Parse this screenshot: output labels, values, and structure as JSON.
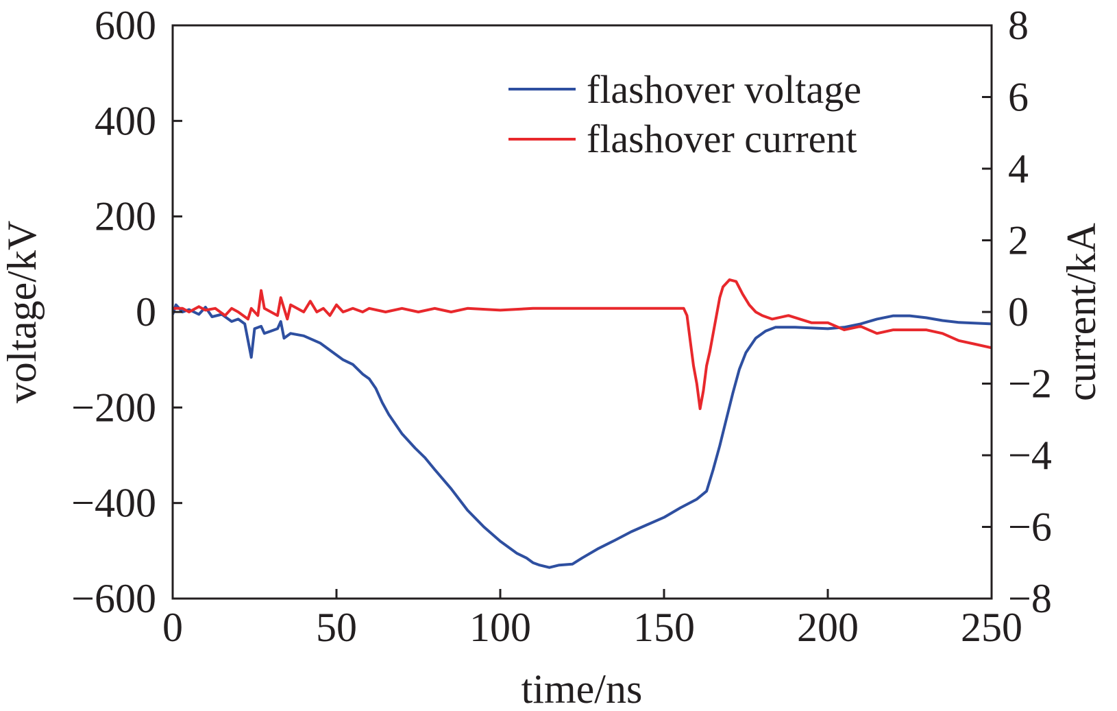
{
  "chart_data": {
    "type": "line",
    "xlabel": "time/ns",
    "ylabel": "voltage/kV",
    "y2label": "current/kA",
    "xlim": [
      0,
      250
    ],
    "ylim": [
      -600,
      600
    ],
    "y2lim": [
      -8,
      8
    ],
    "xticks": [
      0,
      50,
      100,
      150,
      200,
      250
    ],
    "yticks": [
      -600,
      -400,
      -200,
      0,
      200,
      400,
      600
    ],
    "y2ticks": [
      -8,
      -6,
      -4,
      -2,
      0,
      2,
      4,
      6,
      8
    ],
    "grid": false,
    "legend_position": "top-right",
    "series": [
      {
        "name": "flashover voltage",
        "axis": "left",
        "color": "#2e4fa0",
        "points": [
          [
            0,
            -5
          ],
          [
            1,
            15
          ],
          [
            3,
            0
          ],
          [
            5,
            5
          ],
          [
            8,
            -5
          ],
          [
            10,
            10
          ],
          [
            12,
            -10
          ],
          [
            15,
            -5
          ],
          [
            18,
            -20
          ],
          [
            20,
            -15
          ],
          [
            22,
            -25
          ],
          [
            24,
            -95
          ],
          [
            25,
            -35
          ],
          [
            27,
            -30
          ],
          [
            28,
            -45
          ],
          [
            30,
            -40
          ],
          [
            32,
            -35
          ],
          [
            33,
            -20
          ],
          [
            34,
            -55
          ],
          [
            36,
            -45
          ],
          [
            40,
            -50
          ],
          [
            45,
            -65
          ],
          [
            48,
            -80
          ],
          [
            52,
            -100
          ],
          [
            55,
            -110
          ],
          [
            58,
            -130
          ],
          [
            60,
            -140
          ],
          [
            62,
            -160
          ],
          [
            64,
            -190
          ],
          [
            66,
            -215
          ],
          [
            70,
            -255
          ],
          [
            74,
            -285
          ],
          [
            77,
            -305
          ],
          [
            80,
            -330
          ],
          [
            85,
            -370
          ],
          [
            90,
            -415
          ],
          [
            95,
            -450
          ],
          [
            100,
            -480
          ],
          [
            105,
            -505
          ],
          [
            108,
            -515
          ],
          [
            110,
            -525
          ],
          [
            112,
            -530
          ],
          [
            115,
            -535
          ],
          [
            118,
            -530
          ],
          [
            122,
            -528
          ],
          [
            125,
            -515
          ],
          [
            130,
            -495
          ],
          [
            135,
            -478
          ],
          [
            140,
            -460
          ],
          [
            145,
            -445
          ],
          [
            150,
            -430
          ],
          [
            155,
            -410
          ],
          [
            160,
            -392
          ],
          [
            163,
            -375
          ],
          [
            165,
            -330
          ],
          [
            167,
            -280
          ],
          [
            169,
            -225
          ],
          [
            171,
            -170
          ],
          [
            173,
            -120
          ],
          [
            175,
            -85
          ],
          [
            178,
            -55
          ],
          [
            181,
            -40
          ],
          [
            184,
            -32
          ],
          [
            190,
            -32
          ],
          [
            200,
            -35
          ],
          [
            205,
            -32
          ],
          [
            210,
            -25
          ],
          [
            215,
            -15
          ],
          [
            220,
            -8
          ],
          [
            225,
            -8
          ],
          [
            230,
            -12
          ],
          [
            235,
            -18
          ],
          [
            240,
            -22
          ],
          [
            250,
            -25
          ]
        ]
      },
      {
        "name": "flashover current",
        "axis": "right",
        "color": "#e8282c",
        "points": [
          [
            0,
            0.1
          ],
          [
            3,
            0.1
          ],
          [
            5,
            0
          ],
          [
            8,
            0.15
          ],
          [
            10,
            0.05
          ],
          [
            13,
            0.1
          ],
          [
            16,
            -0.1
          ],
          [
            18,
            0.1
          ],
          [
            20,
            0
          ],
          [
            23,
            -0.2
          ],
          [
            24,
            0.1
          ],
          [
            26,
            -0.1
          ],
          [
            27,
            0.6
          ],
          [
            28,
            0.1
          ],
          [
            30,
            0
          ],
          [
            32,
            -0.1
          ],
          [
            33,
            0.4
          ],
          [
            34,
            0.1
          ],
          [
            35,
            -0.2
          ],
          [
            36,
            0.2
          ],
          [
            38,
            0.1
          ],
          [
            40,
            0
          ],
          [
            42,
            0.3
          ],
          [
            44,
            0
          ],
          [
            46,
            0.1
          ],
          [
            48,
            -0.1
          ],
          [
            50,
            0.2
          ],
          [
            52,
            0
          ],
          [
            55,
            0.1
          ],
          [
            58,
            0
          ],
          [
            60,
            0.1
          ],
          [
            65,
            0
          ],
          [
            70,
            0.1
          ],
          [
            75,
            0
          ],
          [
            80,
            0.1
          ],
          [
            85,
            0
          ],
          [
            90,
            0.1
          ],
          [
            100,
            0.05
          ],
          [
            110,
            0.1
          ],
          [
            120,
            0.1
          ],
          [
            130,
            0.1
          ],
          [
            140,
            0.1
          ],
          [
            150,
            0.1
          ],
          [
            156,
            0.1
          ],
          [
            157,
            -0.1
          ],
          [
            158,
            -0.8
          ],
          [
            159,
            -1.5
          ],
          [
            160,
            -2
          ],
          [
            161,
            -2.7
          ],
          [
            162,
            -2.2
          ],
          [
            163,
            -1.5
          ],
          [
            164,
            -1.1
          ],
          [
            165,
            -0.6
          ],
          [
            166,
            -0.1
          ],
          [
            167,
            0.4
          ],
          [
            168,
            0.7
          ],
          [
            170,
            0.9
          ],
          [
            172,
            0.85
          ],
          [
            174,
            0.5
          ],
          [
            176,
            0.2
          ],
          [
            178,
            0
          ],
          [
            180,
            -0.1
          ],
          [
            183,
            -0.2
          ],
          [
            188,
            -0.1
          ],
          [
            195,
            -0.3
          ],
          [
            200,
            -0.3
          ],
          [
            205,
            -0.5
          ],
          [
            210,
            -0.4
          ],
          [
            215,
            -0.6
          ],
          [
            220,
            -0.5
          ],
          [
            230,
            -0.5
          ],
          [
            235,
            -0.6
          ],
          [
            240,
            -0.8
          ],
          [
            245,
            -0.9
          ],
          [
            250,
            -1.0
          ]
        ]
      }
    ]
  }
}
